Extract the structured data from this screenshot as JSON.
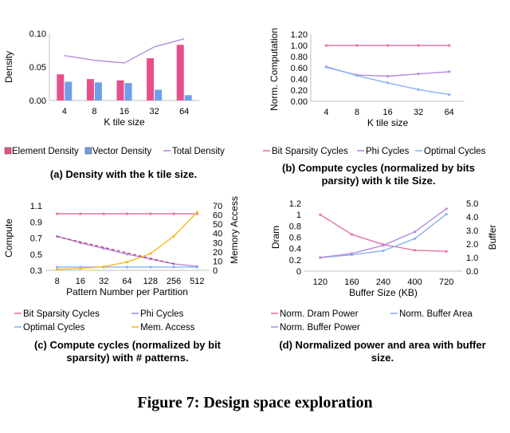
{
  "figure_caption": "Figure 7: Design space exploration",
  "colors": {
    "element_density": "#e84f8a",
    "vector_density": "#6f9fe8",
    "total_density": "#b58be0",
    "bit_sparsity": "#e870a8",
    "phi": "#b58be0",
    "optimal": "#8ab2ee",
    "mem_access": "#f4bb22",
    "dram_power": "#e870a8",
    "buffer_area": "#8ab2ee",
    "buffer_power": "#b58be0",
    "axis": "#bfbfbf"
  },
  "chart_data": [
    {
      "id": "a",
      "type": "bar",
      "caption": "(a) Density with the k tile size.",
      "categories": [
        "4",
        "8",
        "16",
        "32",
        "64"
      ],
      "xlabel": "K tile size",
      "ylabel": "Density",
      "ylim": [
        0,
        0.1
      ],
      "yticks": [
        "0.00",
        "0.05",
        "0.10"
      ],
      "series": [
        {
          "name": "Element Density",
          "kind": "bar",
          "values": [
            0.039,
            0.032,
            0.03,
            0.063,
            0.083
          ]
        },
        {
          "name": "Vector Density",
          "kind": "bar",
          "values": [
            0.028,
            0.027,
            0.026,
            0.016,
            0.008
          ]
        },
        {
          "name": "Total Density",
          "kind": "line",
          "values": [
            0.067,
            0.06,
            0.056,
            0.08,
            0.092
          ]
        }
      ],
      "legend": "bottom"
    },
    {
      "id": "b",
      "type": "line",
      "caption": "(b) Compute cycles (normalized by bits parsity) with k tile Size.",
      "categories": [
        "4",
        "8",
        "16",
        "32",
        "64"
      ],
      "xlabel": "K tile size",
      "ylabel": "Norm. Computation",
      "ylim": [
        0,
        1.2
      ],
      "yticks": [
        "0.00",
        "0.20",
        "0.40",
        "0.60",
        "0.80",
        "1.00",
        "1.20"
      ],
      "series": [
        {
          "name": "Bit Sparsity Cycles",
          "values": [
            1.0,
            1.0,
            1.0,
            1.0,
            1.0
          ]
        },
        {
          "name": "Phi Cycles",
          "values": [
            0.61,
            0.47,
            0.45,
            0.49,
            0.53
          ]
        },
        {
          "name": "Optimal Cycles",
          "values": [
            0.62,
            0.46,
            0.33,
            0.21,
            0.12
          ]
        }
      ],
      "legend": "bottom"
    },
    {
      "id": "c",
      "type": "line",
      "caption": "(c) Compute cycles (normalized by bit sparsity) with # patterns.",
      "categories": [
        "8",
        "16",
        "32",
        "64",
        "128",
        "256",
        "512"
      ],
      "xlabel": "Pattern Number per Partition",
      "ylabel": "Compute",
      "ylabel_right": "Memory Access",
      "ylim": [
        0.3,
        1.1
      ],
      "yticks": [
        "0.3",
        "0.5",
        "0.7",
        "0.9",
        "1.1"
      ],
      "ylim_right": [
        0,
        70
      ],
      "yticks_right": [
        "0",
        "10",
        "20",
        "30",
        "40",
        "50",
        "60",
        "70"
      ],
      "series": [
        {
          "name": "Bit Sparsity Cycles",
          "axis": "left",
          "values": [
            1.0,
            1.0,
            1.0,
            1.0,
            1.0,
            1.0,
            1.0
          ]
        },
        {
          "name": "Phi Cycles",
          "axis": "left",
          "values": [
            0.72,
            0.64,
            0.57,
            0.5,
            0.44,
            0.38,
            0.35
          ]
        },
        {
          "name": "Optimal Cycles",
          "axis": "left",
          "values": [
            0.34,
            0.34,
            0.34,
            0.34,
            0.34,
            0.34,
            0.34
          ]
        },
        {
          "name": "Mem. Access",
          "axis": "right",
          "values": [
            1,
            2,
            4,
            9,
            18,
            37,
            63
          ]
        }
      ],
      "legend": "bottom"
    },
    {
      "id": "d",
      "type": "line",
      "caption": "(d) Normalized power and area with buffer size.",
      "categories": [
        "120",
        "160",
        "240",
        "400",
        "720"
      ],
      "xlabel": "Buffer Size (KB)",
      "ylabel": "Dram",
      "ylabel_right": "Buffer",
      "ylim": [
        0,
        1.2
      ],
      "yticks": [
        "0",
        "0.2",
        "0.4",
        "0.6",
        "0.8",
        "1",
        "1.2"
      ],
      "ylim_right": [
        0,
        5
      ],
      "yticks_right": [
        "0.0",
        "1.0",
        "2.0",
        "3.0",
        "4.0",
        "5.0"
      ],
      "series": [
        {
          "name": "Norm. Dram Power",
          "axis": "left",
          "values": [
            1.0,
            0.65,
            0.47,
            0.37,
            0.35
          ]
        },
        {
          "name": "Norm. Buffer Area",
          "axis": "right",
          "values": [
            1.0,
            1.2,
            1.5,
            2.4,
            4.2
          ]
        },
        {
          "name": "Norm. Buffer Power",
          "axis": "right",
          "values": [
            1.0,
            1.3,
            1.9,
            2.9,
            4.6
          ]
        }
      ],
      "legend": "bottom"
    }
  ]
}
